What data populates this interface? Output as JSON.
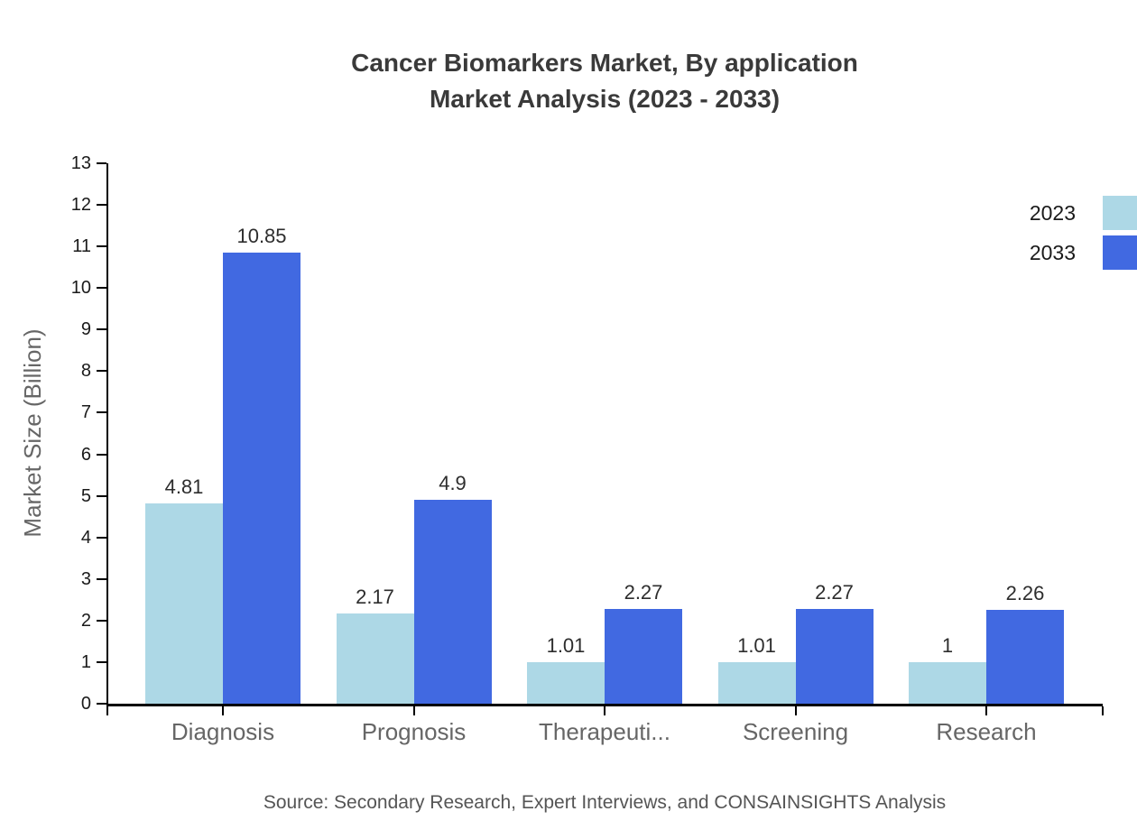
{
  "title": {
    "line1": "Cancer Biomarkers Market, By application",
    "line2": "Market Analysis (2023 - 2033)"
  },
  "legend": {
    "items": [
      {
        "label": "2023",
        "color": "#ADD8E6"
      },
      {
        "label": "2033",
        "color": "#4169E1"
      }
    ]
  },
  "y_axis_label": "Market Size (Billion)",
  "source_note": "Source: Secondary Research, Expert Interviews, and CONSAINSIGHTS Analysis",
  "chart_data": {
    "type": "bar",
    "title": "Cancer Biomarkers Market, By application Market Analysis (2023 - 2033)",
    "categories": [
      "Diagnosis",
      "Prognosis",
      "Therapeuti...",
      "Screening",
      "Research"
    ],
    "series": [
      {
        "name": "2023",
        "color": "#ADD8E6",
        "values": [
          4.81,
          2.17,
          1.01,
          1.01,
          1
        ]
      },
      {
        "name": "2033",
        "color": "#4169E1",
        "values": [
          10.85,
          4.9,
          2.27,
          2.27,
          2.26
        ]
      }
    ],
    "xlabel": "",
    "ylabel": "Market Size (Billion)",
    "ylim": [
      0,
      13
    ],
    "ytick_step": 1,
    "yticks": [
      0,
      1,
      2,
      3,
      4,
      5,
      6,
      7,
      8,
      9,
      10,
      11,
      12,
      13
    ],
    "grid": false,
    "legend_position": "top-right",
    "value_labels_shown": true
  }
}
